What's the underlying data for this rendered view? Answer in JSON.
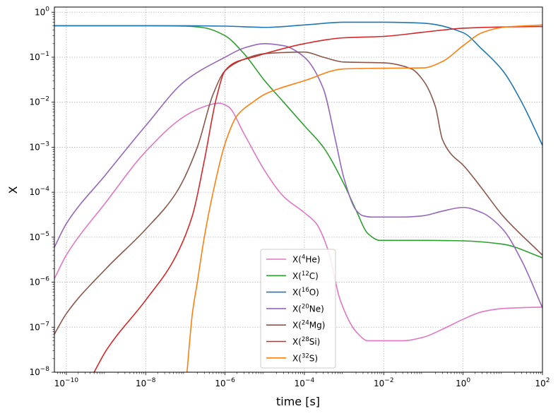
{
  "chart_data": {
    "type": "line",
    "title": "",
    "xlabel": "time [s]",
    "ylabel": "X",
    "xscale": "log",
    "yscale": "log",
    "xlim": [
      5e-11,
      100
    ],
    "ylim": [
      1e-08,
      1.3
    ],
    "grid": true,
    "legend_position": "lower-center",
    "x_ticks": [
      {
        "value": 1e-10,
        "base": "10",
        "exp": "−10"
      },
      {
        "value": 1e-08,
        "base": "10",
        "exp": "−8"
      },
      {
        "value": 1e-06,
        "base": "10",
        "exp": "−6"
      },
      {
        "value": 0.0001,
        "base": "10",
        "exp": "−4"
      },
      {
        "value": 0.01,
        "base": "10",
        "exp": "−2"
      },
      {
        "value": 1,
        "base": "10",
        "exp": "0"
      },
      {
        "value": 100,
        "base": "10",
        "exp": "2"
      }
    ],
    "y_ticks": [
      {
        "value": 1e-08,
        "base": "10",
        "exp": "−8"
      },
      {
        "value": 1e-07,
        "base": "10",
        "exp": "−7"
      },
      {
        "value": 1e-06,
        "base": "10",
        "exp": "−6"
      },
      {
        "value": 1e-05,
        "base": "10",
        "exp": "−5"
      },
      {
        "value": 0.0001,
        "base": "10",
        "exp": "−4"
      },
      {
        "value": 0.001,
        "base": "10",
        "exp": "−3"
      },
      {
        "value": 0.01,
        "base": "10",
        "exp": "−2"
      },
      {
        "value": 0.1,
        "base": "10",
        "exp": "−1"
      },
      {
        "value": 1,
        "base": "10",
        "exp": "0"
      }
    ],
    "series": [
      {
        "name": "X(4He)",
        "label_pre": "X(",
        "label_sup": "4",
        "label_post": "He)",
        "color": "#e377c2",
        "x": [
          5e-11,
          1e-10,
          1e-09,
          1e-08,
          1e-07,
          3e-07,
          7e-07,
          1.2e-06,
          3e-06,
          1e-05,
          3e-05,
          0.0001,
          0.0002,
          0.0004,
          0.0008,
          0.002,
          0.004,
          0.01,
          0.03,
          0.1,
          0.3,
          1,
          3,
          10,
          100
        ],
        "y": [
          1.2e-06,
          4e-06,
          6e-05,
          0.0008,
          0.005,
          0.008,
          0.0095,
          0.008,
          0.002,
          0.0003,
          8e-05,
          3.5e-05,
          2e-05,
          5e-06,
          4e-07,
          8e-08,
          5e-08,
          5e-08,
          5e-08,
          6e-08,
          9e-08,
          1.5e-07,
          2.2e-07,
          2.6e-07,
          2.8e-07
        ]
      },
      {
        "name": "X(12C)",
        "label_pre": "X(",
        "label_sup": "12",
        "label_post": "C)",
        "color": "#2ca02c",
        "x": [
          5e-11,
          1e-08,
          1e-07,
          3e-07,
          1e-06,
          3e-06,
          1e-05,
          3e-05,
          0.0001,
          0.0003,
          0.001,
          0.002,
          0.004,
          0.008,
          0.015,
          0.1,
          1,
          10,
          100
        ],
        "y": [
          0.5,
          0.5,
          0.49,
          0.45,
          0.3,
          0.12,
          0.03,
          0.01,
          0.003,
          0.001,
          0.00015,
          4e-05,
          1.2e-05,
          8.5e-06,
          8.5e-06,
          8.5e-06,
          8.3e-06,
          7e-06,
          3.5e-06
        ]
      },
      {
        "name": "X(16O)",
        "label_pre": "X(",
        "label_sup": "16",
        "label_post": "O)",
        "color": "#1f77b4",
        "x": [
          5e-11,
          1e-07,
          1e-06,
          1e-05,
          0.0001,
          0.001,
          0.01,
          0.1,
          1,
          3,
          10,
          30,
          100
        ],
        "y": [
          0.5,
          0.5,
          0.49,
          0.46,
          0.52,
          0.6,
          0.6,
          0.57,
          0.35,
          0.15,
          0.05,
          0.01,
          0.0011
        ]
      },
      {
        "name": "X(20Ne)",
        "label_pre": "X(",
        "label_sup": "20",
        "label_post": "Ne)",
        "color": "#9467bd",
        "x": [
          5e-11,
          1e-10,
          1e-09,
          1e-08,
          1e-07,
          1e-06,
          3e-06,
          1e-05,
          3e-05,
          0.0001,
          0.0003,
          0.0006,
          0.001,
          0.002,
          0.003,
          0.005,
          0.01,
          0.03,
          0.1,
          0.3,
          1,
          3,
          10,
          30,
          100
        ],
        "y": [
          6e-06,
          2e-05,
          0.00025,
          0.003,
          0.03,
          0.1,
          0.16,
          0.2,
          0.18,
          0.1,
          0.02,
          0.0015,
          0.0002,
          4e-05,
          3e-05,
          2.8e-05,
          2.8e-05,
          2.8e-05,
          3e-05,
          3.8e-05,
          4.6e-05,
          3.5e-05,
          1.5e-05,
          3e-06,
          2.7e-07
        ]
      },
      {
        "name": "X(24Mg)",
        "label_pre": "X(",
        "label_sup": "24",
        "label_post": "Mg)",
        "color": "#8c564b",
        "x": [
          5e-11,
          1e-10,
          1e-09,
          1e-08,
          6e-08,
          2e-07,
          5e-07,
          1e-06,
          3e-06,
          1e-05,
          0.0001,
          0.0003,
          0.001,
          0.01,
          0.05,
          0.1,
          0.2,
          0.3,
          0.5,
          1,
          3,
          10,
          100
        ],
        "y": [
          7e-08,
          2e-07,
          2e-06,
          1.5e-05,
          0.0001,
          0.001,
          0.015,
          0.05,
          0.09,
          0.12,
          0.13,
          0.1,
          0.078,
          0.075,
          0.055,
          0.03,
          0.008,
          0.0015,
          0.0007,
          0.0004,
          0.00012,
          3e-05,
          4e-06
        ]
      },
      {
        "name": "X(28Si)",
        "label_pre": "X(",
        "label_sup": "28",
        "label_post": "Si)",
        "color": "#d62728",
        "x": [
          5e-10,
          1e-09,
          1e-08,
          5e-08,
          1.5e-07,
          3e-07,
          6e-07,
          1e-06,
          2e-06,
          5e-06,
          1e-05,
          0.0001,
          0.001,
          0.01,
          0.1,
          1,
          10,
          100
        ],
        "y": [
          1e-08,
          3e-08,
          4e-07,
          3e-06,
          3e-05,
          0.0005,
          0.012,
          0.05,
          0.08,
          0.1,
          0.12,
          0.2,
          0.27,
          0.29,
          0.36,
          0.44,
          0.47,
          0.48
        ]
      },
      {
        "name": "X(32S)",
        "label_pre": "X(",
        "label_sup": "32",
        "label_post": "S)",
        "color": "#ff7f0e",
        "x": [
          1.1e-07,
          1.5e-07,
          2e-07,
          3e-07,
          5e-07,
          1e-06,
          2e-06,
          5e-06,
          1e-05,
          0.0001,
          0.001,
          0.01,
          0.1,
          0.3,
          1,
          3,
          10,
          100
        ],
        "y": [
          1e-08,
          2e-07,
          1e-06,
          1e-05,
          0.0001,
          0.0012,
          0.005,
          0.01,
          0.015,
          0.03,
          0.055,
          0.057,
          0.058,
          0.08,
          0.18,
          0.35,
          0.46,
          0.52
        ]
      }
    ]
  }
}
